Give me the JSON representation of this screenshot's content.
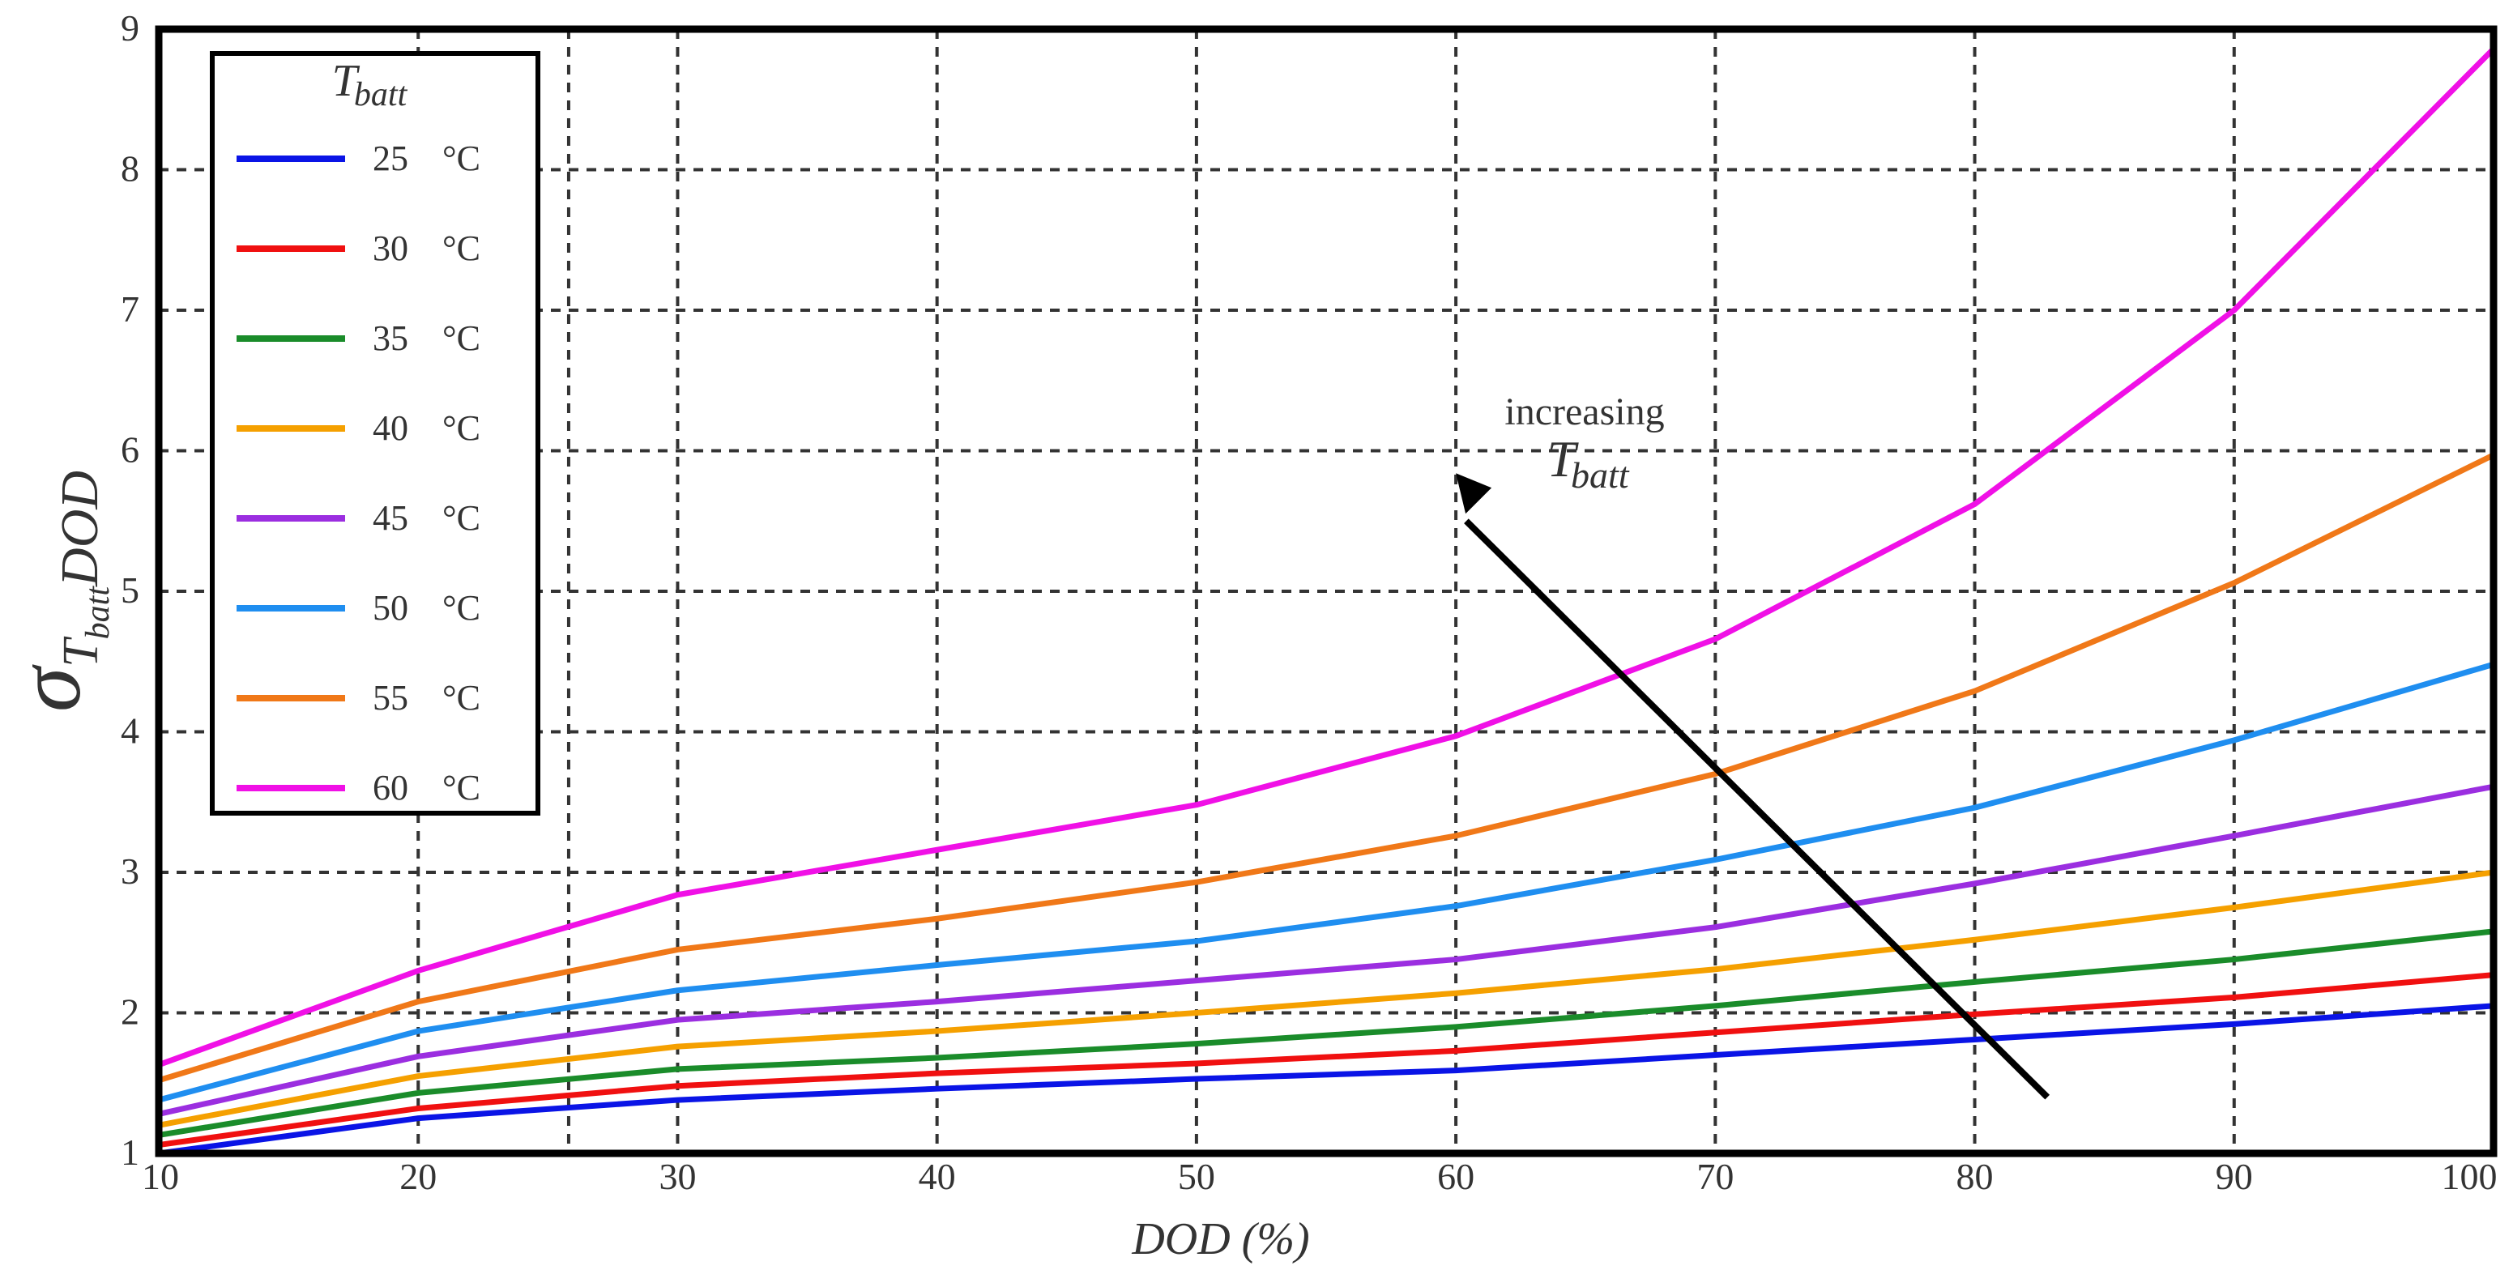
{
  "chart_data": {
    "type": "line",
    "title": "",
    "xlabel": "DOD (%)",
    "ylabel": {
      "main": "σ",
      "subscript": "T",
      "subsubscript": "batt",
      "suffix": "DOD"
    },
    "xlim": [
      10,
      100
    ],
    "ylim": [
      1,
      9
    ],
    "xticks": [
      10,
      20,
      30,
      40,
      50,
      60,
      70,
      80,
      90,
      100
    ],
    "yticks": [
      1,
      2,
      3,
      4,
      5,
      6,
      7,
      8,
      9
    ],
    "grid": true,
    "legend": {
      "title_symbol": "T",
      "title_subscript": "batt",
      "position": "top-left",
      "unit": "°C"
    },
    "x": [
      10,
      20,
      30,
      40,
      50,
      60,
      70,
      80,
      90,
      100
    ],
    "series": [
      {
        "name": "25",
        "color": "#0a14e6",
        "values": [
          1.0,
          1.25,
          1.38,
          1.46,
          1.53,
          1.59,
          1.7,
          1.81,
          1.92,
          2.05
        ]
      },
      {
        "name": "30",
        "color": "#f01010",
        "values": [
          1.06,
          1.32,
          1.48,
          1.57,
          1.64,
          1.73,
          1.86,
          1.99,
          2.11,
          2.27
        ]
      },
      {
        "name": "35",
        "color": "#1a8c2a",
        "values": [
          1.13,
          1.43,
          1.6,
          1.68,
          1.78,
          1.9,
          2.05,
          2.22,
          2.38,
          2.58
        ]
      },
      {
        "name": "40",
        "color": "#f5a000",
        "values": [
          1.2,
          1.55,
          1.76,
          1.87,
          2.0,
          2.14,
          2.31,
          2.52,
          2.75,
          3.0
        ]
      },
      {
        "name": "45",
        "color": "#9b2ee0",
        "values": [
          1.28,
          1.69,
          1.95,
          2.08,
          2.23,
          2.38,
          2.61,
          2.92,
          3.26,
          3.61
        ]
      },
      {
        "name": "50",
        "color": "#1f8ef0",
        "values": [
          1.38,
          1.87,
          2.16,
          2.34,
          2.51,
          2.76,
          3.09,
          3.46,
          3.94,
          4.48
        ]
      },
      {
        "name": "55",
        "color": "#f07818",
        "values": [
          1.52,
          2.08,
          2.45,
          2.67,
          2.93,
          3.26,
          3.7,
          4.29,
          5.06,
          5.97
        ]
      },
      {
        "name": "60",
        "color": "#f010e6",
        "values": [
          1.63,
          2.3,
          2.84,
          3.16,
          3.48,
          3.97,
          4.66,
          5.62,
          7.0,
          8.86
        ]
      }
    ],
    "annotation": {
      "text": "increasing",
      "symbol": "T",
      "subscript": "batt",
      "direction": "up-left"
    }
  }
}
